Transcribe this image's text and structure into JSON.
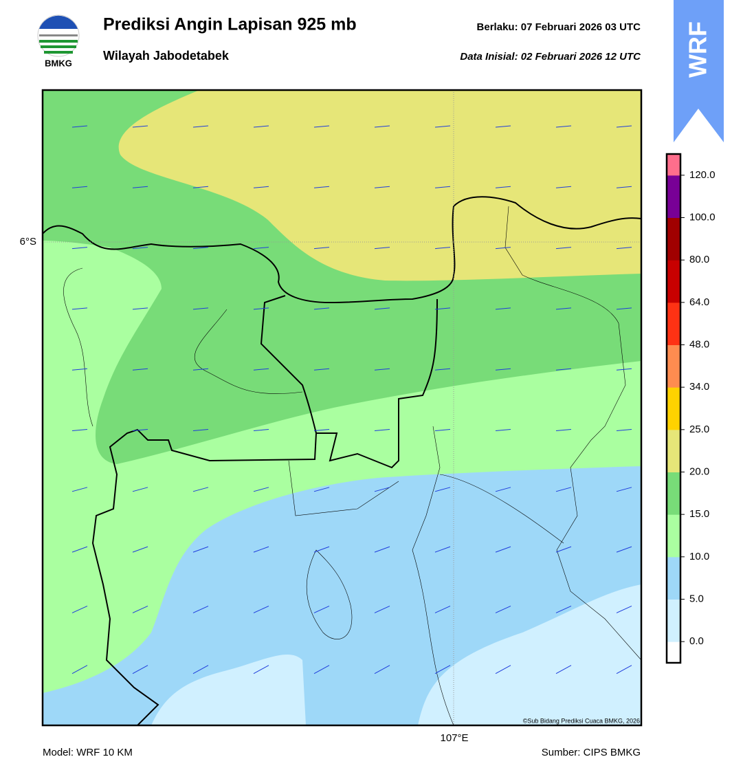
{
  "header": {
    "logo_text": "BMKG",
    "title": "Prediksi Angin Lapisan 925 mb",
    "subtitle": "Wilayah Jabodetabek",
    "valid": "Berlaku:  07 Februari 2026 03 UTC",
    "init": "Data Inisial:  02 Februari 2026 12 UTC",
    "badge": "WRF"
  },
  "map": {
    "lat_label": "6°S",
    "lon_label": "107°E",
    "copyright": "©Sub Bidang Prediksi Cuaca BMKG, 2026"
  },
  "colorbar": {
    "colors": [
      "#ffffff",
      "#d0f0ff",
      "#9ed8f8",
      "#aaffa0",
      "#78dc78",
      "#e6e678",
      "#ffd200",
      "#ff8c50",
      "#ff3214",
      "#c80000",
      "#a00000",
      "#780096",
      "#ff6e8c"
    ],
    "labels": [
      "0.0",
      "5.0",
      "10.0",
      "15.0",
      "20.0",
      "25.0",
      "34.0",
      "48.0",
      "64.0",
      "80.0",
      "100.0",
      "120.0"
    ]
  },
  "footer": {
    "model": "Model: WRF 10 KM",
    "source": "Sumber: CIPS BMKG"
  }
}
